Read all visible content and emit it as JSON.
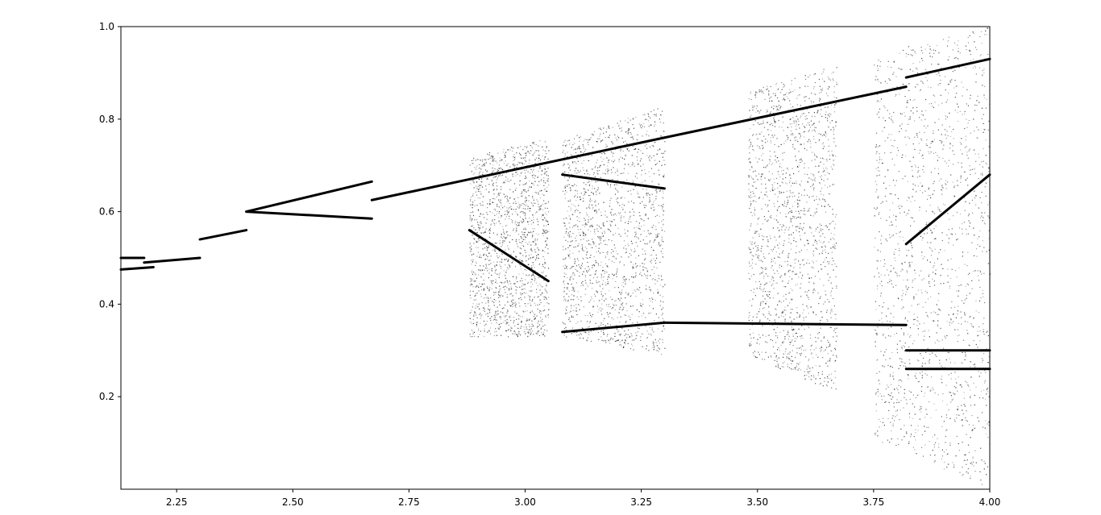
{
  "chart_data": {
    "type": "scatter",
    "title": "",
    "xlabel": "",
    "ylabel": "",
    "xlim": [
      2.13,
      4.0
    ],
    "ylim": [
      0.0,
      1.0
    ],
    "grid": false,
    "x_ticks": [
      {
        "value": 2.25,
        "label": "2.25"
      },
      {
        "value": 2.5,
        "label": "2.50"
      },
      {
        "value": 2.75,
        "label": "2.75"
      },
      {
        "value": 3.0,
        "label": "3.00"
      },
      {
        "value": 3.25,
        "label": "3.25"
      },
      {
        "value": 3.5,
        "label": "3.50"
      },
      {
        "value": 3.75,
        "label": "3.75"
      },
      {
        "value": 4.0,
        "label": "4.00"
      }
    ],
    "y_ticks": [
      {
        "value": 0.2,
        "label": "0.2"
      },
      {
        "value": 0.4,
        "label": "0.4"
      },
      {
        "value": 0.6,
        "label": "0.6"
      },
      {
        "value": 0.8,
        "label": "0.8"
      },
      {
        "value": 1.0,
        "label": "1.0"
      }
    ],
    "marker_color": "#000000",
    "background": "#ffffff",
    "description_series": "bifurcation-style density of attractor values",
    "series": [
      {
        "segments": [
          {
            "x": [
              2.13,
              2.2
            ],
            "y": [
              0.475,
              0.48
            ]
          },
          {
            "x": [
              2.13,
              2.18
            ],
            "y": [
              0.5,
              0.5
            ]
          },
          {
            "x": [
              2.18,
              2.3
            ],
            "y": [
              0.49,
              0.5
            ]
          },
          {
            "x": [
              2.3,
              2.4
            ],
            "y": [
              0.54,
              0.56
            ]
          },
          {
            "x": [
              2.4,
              2.67
            ],
            "y": [
              0.6,
              0.665
            ]
          },
          {
            "x": [
              2.4,
              2.67
            ],
            "y": [
              0.6,
              0.585
            ]
          },
          {
            "x": [
              2.67,
              2.88
            ],
            "y": [
              0.625,
              0.67
            ]
          },
          {
            "x": [
              2.88,
              3.3
            ],
            "y": [
              0.67,
              0.76
            ]
          },
          {
            "x": [
              3.3,
              3.82
            ],
            "y": [
              0.76,
              0.87
            ]
          },
          {
            "x": [
              3.82,
              4.0
            ],
            "y": [
              0.89,
              0.93
            ]
          },
          {
            "x": [
              3.3,
              3.82
            ],
            "y": [
              0.36,
              0.355
            ]
          },
          {
            "x": [
              3.08,
              3.3
            ],
            "y": [
              0.34,
              0.36
            ]
          },
          {
            "x": [
              2.88,
              3.05
            ],
            "y": [
              0.56,
              0.45
            ]
          },
          {
            "x": [
              3.08,
              3.3
            ],
            "y": [
              0.68,
              0.65
            ]
          },
          {
            "x": [
              3.82,
              4.0
            ],
            "y": [
              0.3,
              0.3
            ]
          },
          {
            "x": [
              3.82,
              4.0
            ],
            "y": [
              0.26,
              0.26
            ]
          },
          {
            "x": [
              3.82,
              4.0
            ],
            "y": [
              0.53,
              0.68
            ]
          }
        ]
      }
    ],
    "density_bands": [
      {
        "x": [
          2.88,
          3.05
        ],
        "y_min": [
          0.33,
          0.33
        ],
        "y_max": [
          0.72,
          0.76
        ]
      },
      {
        "x": [
          3.08,
          3.3
        ],
        "y_min": [
          0.33,
          0.29
        ],
        "y_max": [
          0.76,
          0.83
        ]
      },
      {
        "x": [
          3.48,
          3.67
        ],
        "y_min": [
          0.29,
          0.21
        ],
        "y_max": [
          0.86,
          0.92
        ]
      },
      {
        "x": [
          3.75,
          4.0
        ],
        "y_min": [
          0.11,
          0.0
        ],
        "y_max": [
          0.94,
          1.0
        ]
      }
    ]
  }
}
